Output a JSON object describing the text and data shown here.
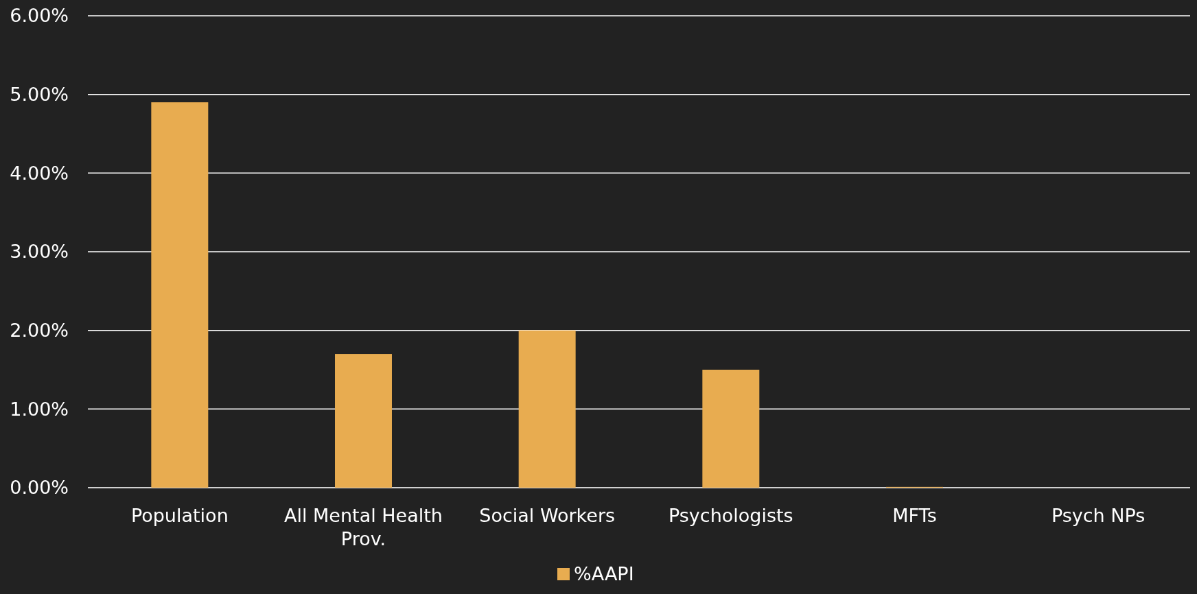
{
  "chart_data": {
    "type": "bar",
    "categories": [
      "Population",
      "All Mental Health Prov.",
      "Social Workers",
      "Psychologists",
      "MFTs",
      "Psych NPs"
    ],
    "series": [
      {
        "name": "%AAPI",
        "color": "#e8ac50",
        "values": [
          4.9,
          1.7,
          2.0,
          1.5,
          0.01,
          0
        ]
      }
    ],
    "ylim": [
      0,
      6
    ],
    "yticks": [
      {
        "value": 0,
        "label": "0.00%"
      },
      {
        "value": 1,
        "label": "1.00%"
      },
      {
        "value": 2,
        "label": "2.00%"
      },
      {
        "value": 3,
        "label": "3.00%"
      },
      {
        "value": 4,
        "label": "4.00%"
      },
      {
        "value": 5,
        "label": "5.00%"
      },
      {
        "value": 6,
        "label": "6.00%"
      }
    ],
    "grid": "y",
    "legend": "bottom"
  }
}
